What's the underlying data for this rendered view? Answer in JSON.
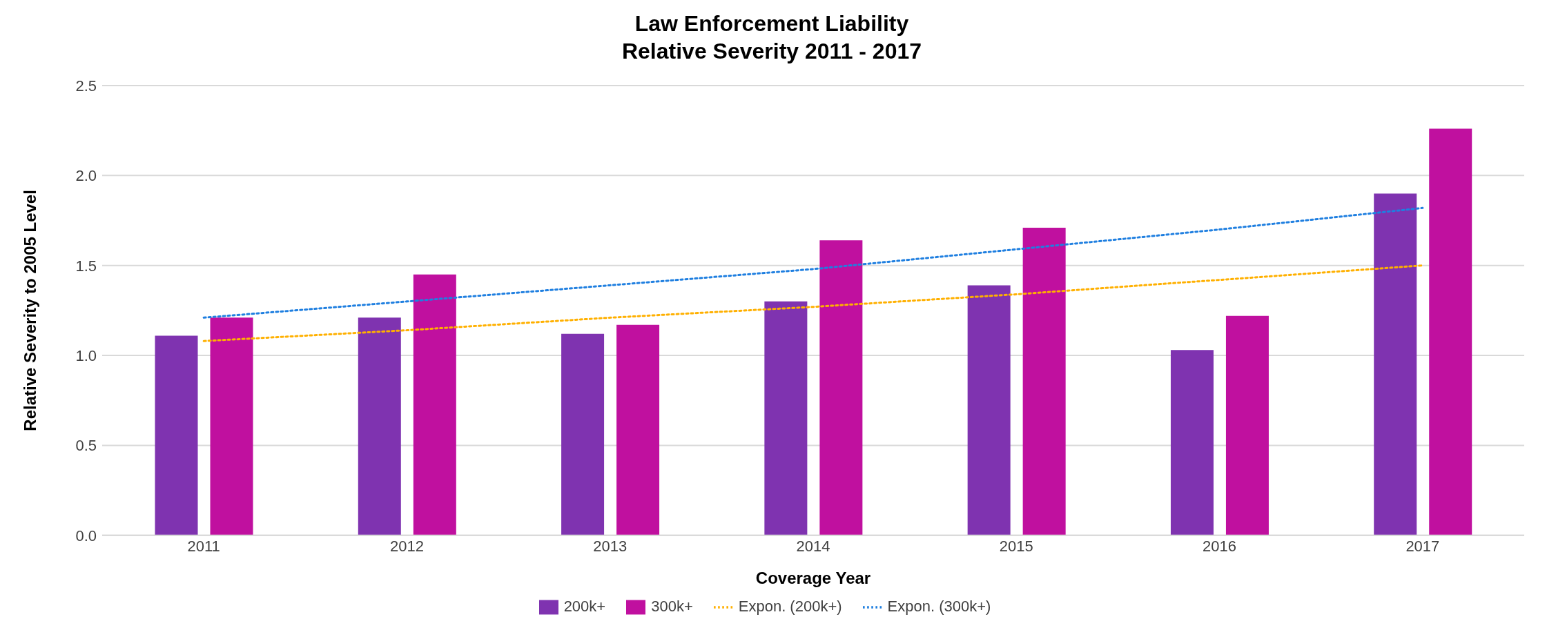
{
  "chart_data": {
    "type": "bar",
    "title": "Law Enforcement Liability",
    "subtitle": "Relative Severity 2011 - 2017",
    "xlabel": "Coverage Year",
    "ylabel": "Relative Severity to 2005 Level",
    "categories": [
      "2011",
      "2012",
      "2013",
      "2014",
      "2015",
      "2016",
      "2017"
    ],
    "series": [
      {
        "name": "200k+",
        "color": "#7f33b0",
        "values": [
          1.11,
          1.21,
          1.12,
          1.3,
          1.39,
          1.03,
          1.9
        ]
      },
      {
        "name": "300k+",
        "color": "#c0109f",
        "values": [
          1.21,
          1.45,
          1.17,
          1.64,
          1.71,
          1.22,
          2.26
        ]
      },
      {
        "name": "Expon. (200k+)",
        "type": "line",
        "line_style": "dotted",
        "color": "#ffb000",
        "values": [
          1.08,
          1.14,
          1.21,
          1.27,
          1.34,
          1.42,
          1.5
        ]
      },
      {
        "name": "Expon. (300k+)",
        "type": "line",
        "line_style": "dotted",
        "color": "#1f7fe0",
        "values": [
          1.21,
          1.3,
          1.39,
          1.48,
          1.59,
          1.7,
          1.82
        ]
      }
    ],
    "ylim": [
      0,
      2.5
    ],
    "yticks": [
      {
        "value": 0,
        "label": "0.0"
      },
      0.5,
      {
        "value": 1,
        "label": "1.0"
      },
      1.5,
      {
        "value": 2,
        "label": "2.0"
      },
      2.5
    ],
    "grid": "y",
    "legend": "bottom",
    "marker": "none"
  }
}
